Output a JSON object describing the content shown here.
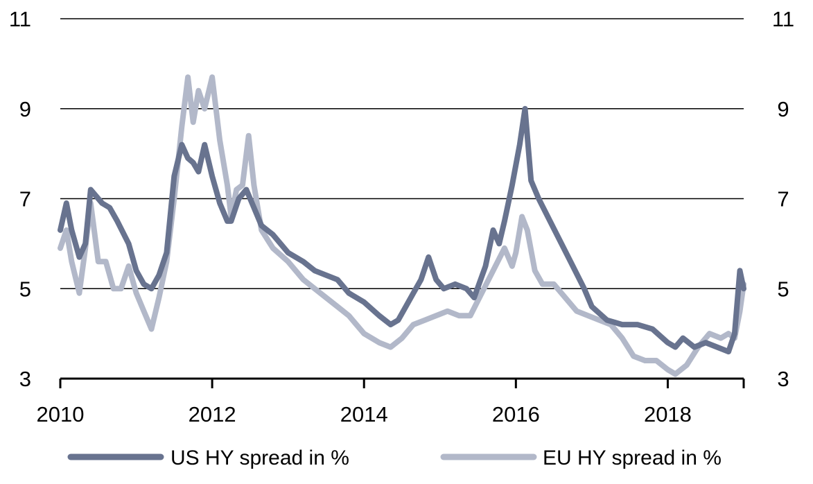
{
  "chart_data": {
    "type": "line",
    "title": "",
    "xlabel": "",
    "ylabel": "",
    "xlim": [
      2010,
      2019.0
    ],
    "ylim": [
      3,
      11
    ],
    "x_ticks": [
      2010,
      2012,
      2014,
      2016,
      2018
    ],
    "x_tick_labels": [
      "2010",
      "2012",
      "2014",
      "2016",
      "2018"
    ],
    "y_ticks": [
      3,
      5,
      7,
      9,
      11
    ],
    "y_tick_labels": [
      "3",
      "5",
      "7",
      "9",
      "11"
    ],
    "y_axis_right": true,
    "grid": "horizontal",
    "legend_position": "bottom",
    "series": [
      {
        "name": "US HY spread in %",
        "color": "#68738f",
        "x": [
          2010.0,
          2010.08,
          2010.15,
          2010.25,
          2010.33,
          2010.4,
          2010.45,
          2010.55,
          2010.65,
          2010.75,
          2010.9,
          2011.0,
          2011.1,
          2011.2,
          2011.3,
          2011.4,
          2011.5,
          2011.6,
          2011.68,
          2011.75,
          2011.82,
          2011.9,
          2012.0,
          2012.1,
          2012.2,
          2012.25,
          2012.35,
          2012.45,
          2012.55,
          2012.65,
          2012.8,
          2013.0,
          2013.2,
          2013.35,
          2013.5,
          2013.65,
          2013.8,
          2014.0,
          2014.2,
          2014.35,
          2014.45,
          2014.55,
          2014.65,
          2014.75,
          2014.85,
          2014.95,
          2015.05,
          2015.2,
          2015.35,
          2015.45,
          2015.6,
          2015.7,
          2015.78,
          2015.85,
          2015.95,
          2016.05,
          2016.12,
          2016.2,
          2016.3,
          2016.45,
          2016.6,
          2016.75,
          2016.9,
          2017.0,
          2017.2,
          2017.4,
          2017.6,
          2017.8,
          2018.0,
          2018.1,
          2018.2,
          2018.35,
          2018.5,
          2018.65,
          2018.8,
          2018.88,
          2018.95,
          2019.0
        ],
        "values": [
          6.3,
          6.9,
          6.3,
          5.7,
          6.0,
          7.2,
          7.1,
          6.9,
          6.8,
          6.5,
          6.0,
          5.4,
          5.1,
          5.0,
          5.3,
          5.8,
          7.5,
          8.2,
          7.9,
          7.8,
          7.6,
          8.2,
          7.5,
          6.9,
          6.5,
          6.5,
          7.0,
          7.2,
          6.8,
          6.4,
          6.2,
          5.8,
          5.6,
          5.4,
          5.3,
          5.2,
          4.9,
          4.7,
          4.4,
          4.2,
          4.3,
          4.6,
          4.9,
          5.2,
          5.7,
          5.2,
          5.0,
          5.1,
          5.0,
          4.8,
          5.5,
          6.3,
          6.0,
          6.5,
          7.3,
          8.2,
          9.0,
          7.4,
          7.0,
          6.5,
          6.0,
          5.5,
          5.0,
          4.6,
          4.3,
          4.2,
          4.2,
          4.1,
          3.8,
          3.7,
          3.9,
          3.7,
          3.8,
          3.7,
          3.6,
          4.0,
          5.4,
          5.0
        ]
      },
      {
        "name": "EU HY spread in %",
        "color": "#b2b8c9",
        "x": [
          2010.0,
          2010.08,
          2010.15,
          2010.25,
          2010.33,
          2010.4,
          2010.5,
          2010.6,
          2010.7,
          2010.8,
          2010.9,
          2011.0,
          2011.1,
          2011.2,
          2011.3,
          2011.4,
          2011.5,
          2011.6,
          2011.68,
          2011.75,
          2011.82,
          2011.9,
          2012.0,
          2012.1,
          2012.2,
          2012.25,
          2012.32,
          2012.4,
          2012.48,
          2012.55,
          2012.65,
          2012.8,
          2013.0,
          2013.2,
          2013.35,
          2013.5,
          2013.65,
          2013.8,
          2014.0,
          2014.2,
          2014.35,
          2014.5,
          2014.65,
          2014.8,
          2014.95,
          2015.1,
          2015.25,
          2015.4,
          2015.55,
          2015.7,
          2015.85,
          2015.95,
          2016.0,
          2016.08,
          2016.15,
          2016.25,
          2016.35,
          2016.5,
          2016.65,
          2016.8,
          2016.95,
          2017.1,
          2017.25,
          2017.4,
          2017.55,
          2017.7,
          2017.85,
          2018.0,
          2018.1,
          2018.25,
          2018.4,
          2018.55,
          2018.7,
          2018.8,
          2018.88,
          2018.95,
          2019.0
        ],
        "values": [
          5.9,
          6.3,
          5.6,
          4.9,
          5.9,
          6.9,
          5.6,
          5.6,
          5.0,
          5.0,
          5.5,
          4.9,
          4.5,
          4.1,
          4.8,
          5.6,
          7.0,
          8.6,
          9.7,
          8.7,
          9.4,
          9.0,
          9.7,
          8.3,
          7.3,
          6.6,
          7.2,
          7.3,
          8.4,
          7.3,
          6.3,
          5.9,
          5.6,
          5.2,
          5.0,
          4.8,
          4.6,
          4.4,
          4.0,
          3.8,
          3.7,
          3.9,
          4.2,
          4.3,
          4.4,
          4.5,
          4.4,
          4.4,
          4.9,
          5.4,
          5.9,
          5.5,
          5.8,
          6.6,
          6.3,
          5.4,
          5.1,
          5.1,
          4.8,
          4.5,
          4.4,
          4.3,
          4.2,
          3.9,
          3.5,
          3.4,
          3.4,
          3.2,
          3.1,
          3.3,
          3.7,
          4.0,
          3.9,
          4.0,
          3.9,
          4.5,
          5.1
        ]
      }
    ]
  }
}
